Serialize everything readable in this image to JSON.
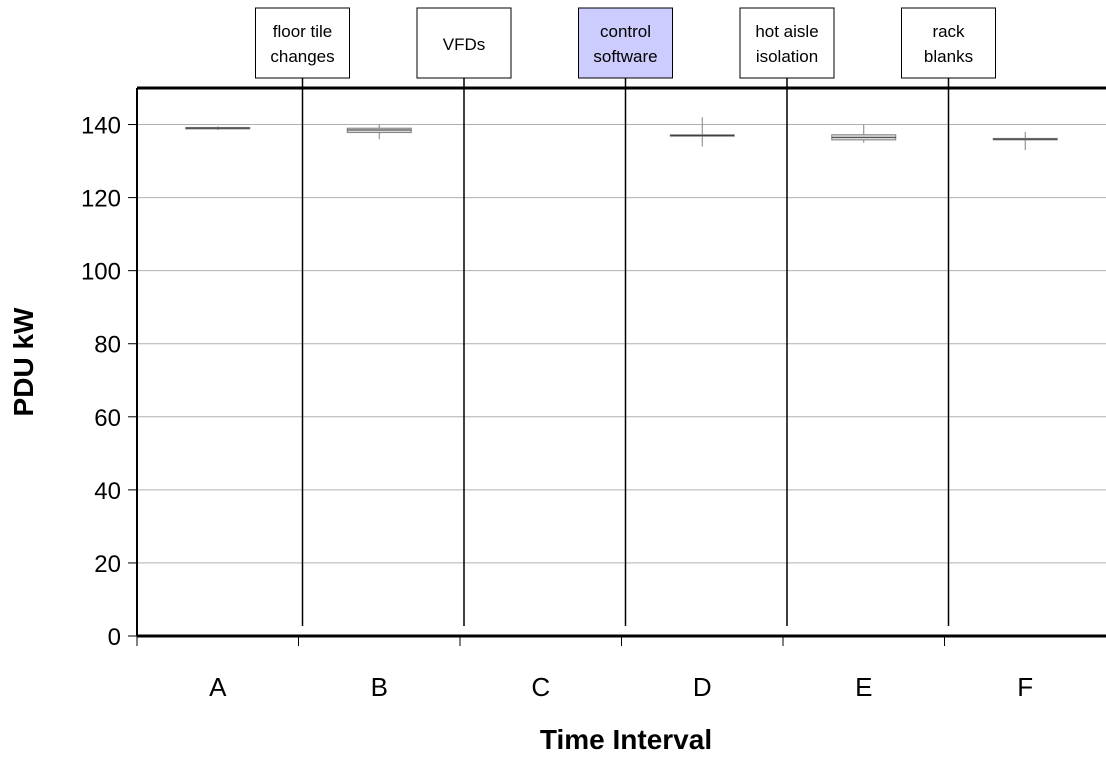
{
  "chart_data": {
    "type": "box",
    "title": "",
    "xlabel": "Time Interval",
    "ylabel": "PDU kW",
    "ylim": [
      0,
      150
    ],
    "yticks": [
      0,
      20,
      40,
      60,
      80,
      100,
      120,
      140
    ],
    "grid": true,
    "categories": [
      "A",
      "B",
      "C",
      "D",
      "E",
      "F"
    ],
    "boxes": [
      {
        "category": "A",
        "min": 138.5,
        "q1": 138.8,
        "median": 139,
        "q3": 139.2,
        "max": 139.5
      },
      {
        "category": "B",
        "min": 136,
        "q1": 137.8,
        "median": 138.5,
        "q3": 139,
        "max": 140
      },
      {
        "category": "C",
        "min": null,
        "q1": null,
        "median": null,
        "q3": null,
        "max": null
      },
      {
        "category": "D",
        "min": 134,
        "q1": 136.8,
        "median": 137,
        "q3": 137.2,
        "max": 142
      },
      {
        "category": "E",
        "min": 135,
        "q1": 135.8,
        "median": 136.5,
        "q3": 137.2,
        "max": 140
      },
      {
        "category": "F",
        "min": 133,
        "q1": 135.8,
        "median": 136,
        "q3": 136.2,
        "max": 138
      }
    ],
    "annotations": [
      {
        "line1": "floor tile",
        "line2": "changes",
        "between": [
          "A",
          "B"
        ],
        "highlight": false
      },
      {
        "line1": "VFDs",
        "line2": "",
        "between": [
          "B",
          "C"
        ],
        "highlight": false
      },
      {
        "line1": "control",
        "line2": "software",
        "between": [
          "C",
          "D"
        ],
        "highlight": true
      },
      {
        "line1": "hot aisle",
        "line2": "isolation",
        "between": [
          "D",
          "E"
        ],
        "highlight": false
      },
      {
        "line1": "rack",
        "line2": "blanks",
        "between": [
          "E",
          "F"
        ],
        "highlight": false
      }
    ]
  },
  "colors": {
    "grid": "#b0b0b0",
    "axis": "#000000",
    "box_fill": "#d9d9d9",
    "box_stroke": "#808080",
    "whisker": "#808080",
    "annotation_fill": "#ffffff",
    "annotation_highlight": "#ccccff"
  }
}
